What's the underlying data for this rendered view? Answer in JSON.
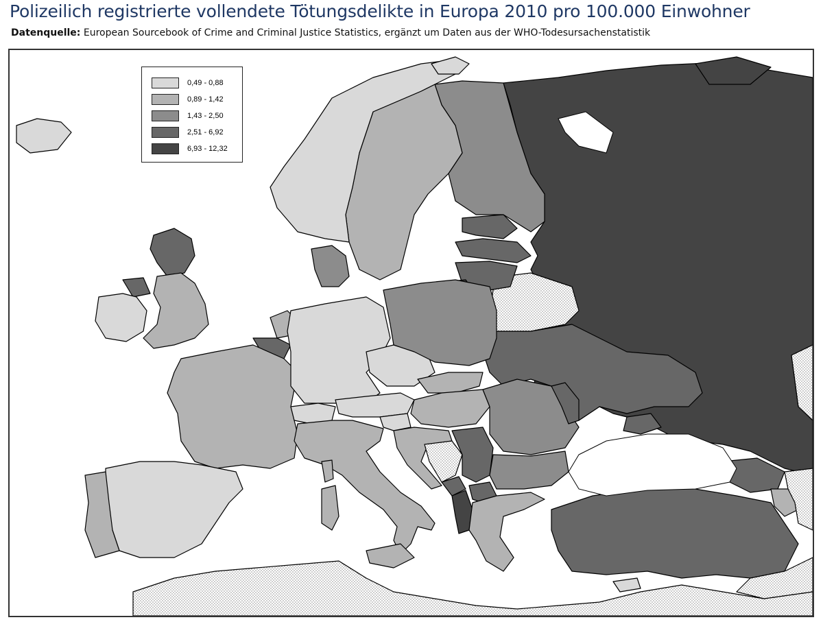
{
  "title": "Polizeilich registrierte vollendete Tötungsdelikte in Europa 2010 pro 100.000 Einwohner",
  "source": {
    "label": "Datenquelle:",
    "text": " European Sourcebook of Crime and Criminal Justice Statistics, ergänzt um Daten aus der WHO-Todesursachenstatistik"
  },
  "legend": {
    "classes": [
      {
        "label": "0,49 - 0,88",
        "color": "#d9d9d9"
      },
      {
        "label": "0,89 - 1,42",
        "color": "#b3b3b3"
      },
      {
        "label": "1,43 - 2,50",
        "color": "#8c8c8c"
      },
      {
        "label": "2,51 - 6,92",
        "color": "#676767"
      },
      {
        "label": "6,93 - 12,32",
        "color": "#444444"
      }
    ]
  },
  "colors": {
    "sea": "#ffffff",
    "no_data_pattern": "dotted",
    "border": "#000000"
  }
}
